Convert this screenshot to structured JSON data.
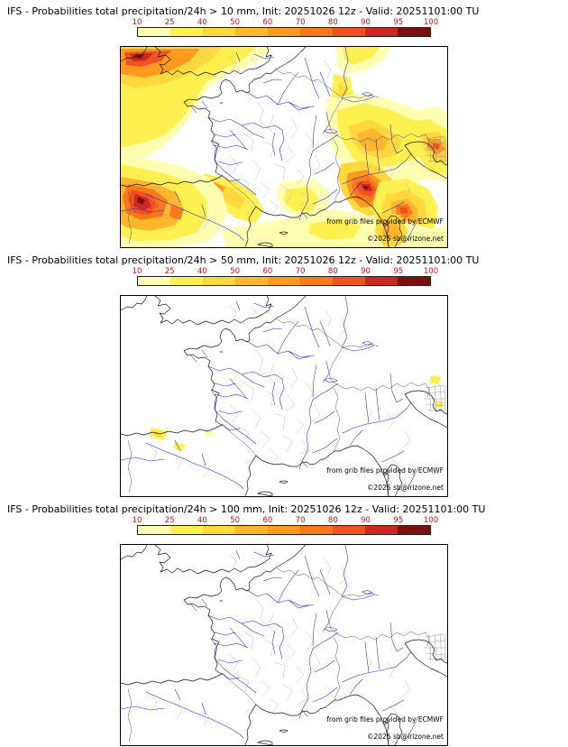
{
  "colorbar": {
    "ticks": [
      "10",
      "25",
      "40",
      "50",
      "60",
      "70",
      "80",
      "90",
      "95",
      "100"
    ],
    "segment_colors": [
      "#ffffb2",
      "#fff052",
      "#ffd83e",
      "#ffb52e",
      "#ff9a1e",
      "#f8781a",
      "#ef5220",
      "#c92920",
      "#7c100e"
    ],
    "tick_color": "#cc1111"
  },
  "panels": [
    {
      "title": "IFS - Probabilities total precipitation/24h > 10 mm, Init: 20251026 12z - Valid: 20251101:00 TU",
      "threshold_mm": 10,
      "credit": "from grib files provided by ECMWF",
      "copyright": "©2025 sb@irizone.net"
    },
    {
      "title": "IFS - Probabilities total precipitation/24h > 50 mm, Init: 20251026 12z - Valid: 20251101:00 TU",
      "threshold_mm": 50,
      "credit": "from grib files provided by ECMWF",
      "copyright": "©2025 sb@irizone.net"
    },
    {
      "title": "IFS - Probabilities total precipitation/24h > 100 mm, Init: 20251026 12z - Valid: 20251101:00 TU",
      "threshold_mm": 100,
      "credit": "from grib files provided by ECMWF",
      "copyright": "©2025 sb@irizone.net"
    }
  ],
  "chart_data": {
    "type": "heatmap",
    "title": "IFS - Probabilities total precipitation/24h",
    "init": "20251026 12z",
    "valid": "20251101:00 TU",
    "thresholds_mm": [
      10,
      50,
      100
    ],
    "probability_scale_percent": [
      10,
      25,
      40,
      50,
      60,
      70,
      80,
      90,
      95,
      100
    ],
    "region": "France / Western Europe",
    "panels_summary": [
      "Widespread 10-100% probabilities over British Isles, Bay of Biscay, NW Iberia, Pyrenees, Alps, Liguria, central Italy and NE Adriatic",
      "Isolated 10-40% probabilities near western Pyrenees / N Spain and NE Italy",
      "No areas above 10% probability"
    ]
  }
}
